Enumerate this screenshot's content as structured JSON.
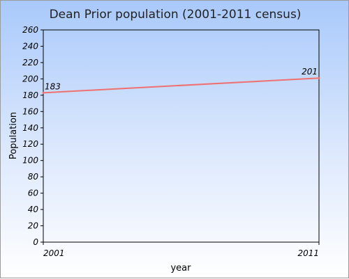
{
  "chart_data": {
    "type": "line",
    "title": "Dean Prior population (2001-2011 census)",
    "xlabel": "year",
    "ylabel": "Population",
    "x": [
      2001,
      2011
    ],
    "x_tick_labels": [
      "2001",
      "2011"
    ],
    "series": [
      {
        "values": [
          183,
          201
        ],
        "data_labels": [
          "183",
          "201"
        ],
        "color": "#f07070"
      }
    ],
    "ylim": [
      0,
      260
    ],
    "y_ticks": [
      0,
      20,
      40,
      60,
      80,
      100,
      120,
      140,
      160,
      180,
      200,
      220,
      240,
      260
    ],
    "y_tick_labels": [
      "0",
      "20",
      "40",
      "60",
      "80",
      "100",
      "120",
      "140",
      "160",
      "180",
      "200",
      "220",
      "240",
      "260"
    ],
    "grid": false,
    "legend": "none"
  },
  "colors": {
    "plot_background": "#ffffff",
    "axis": "#000000"
  }
}
